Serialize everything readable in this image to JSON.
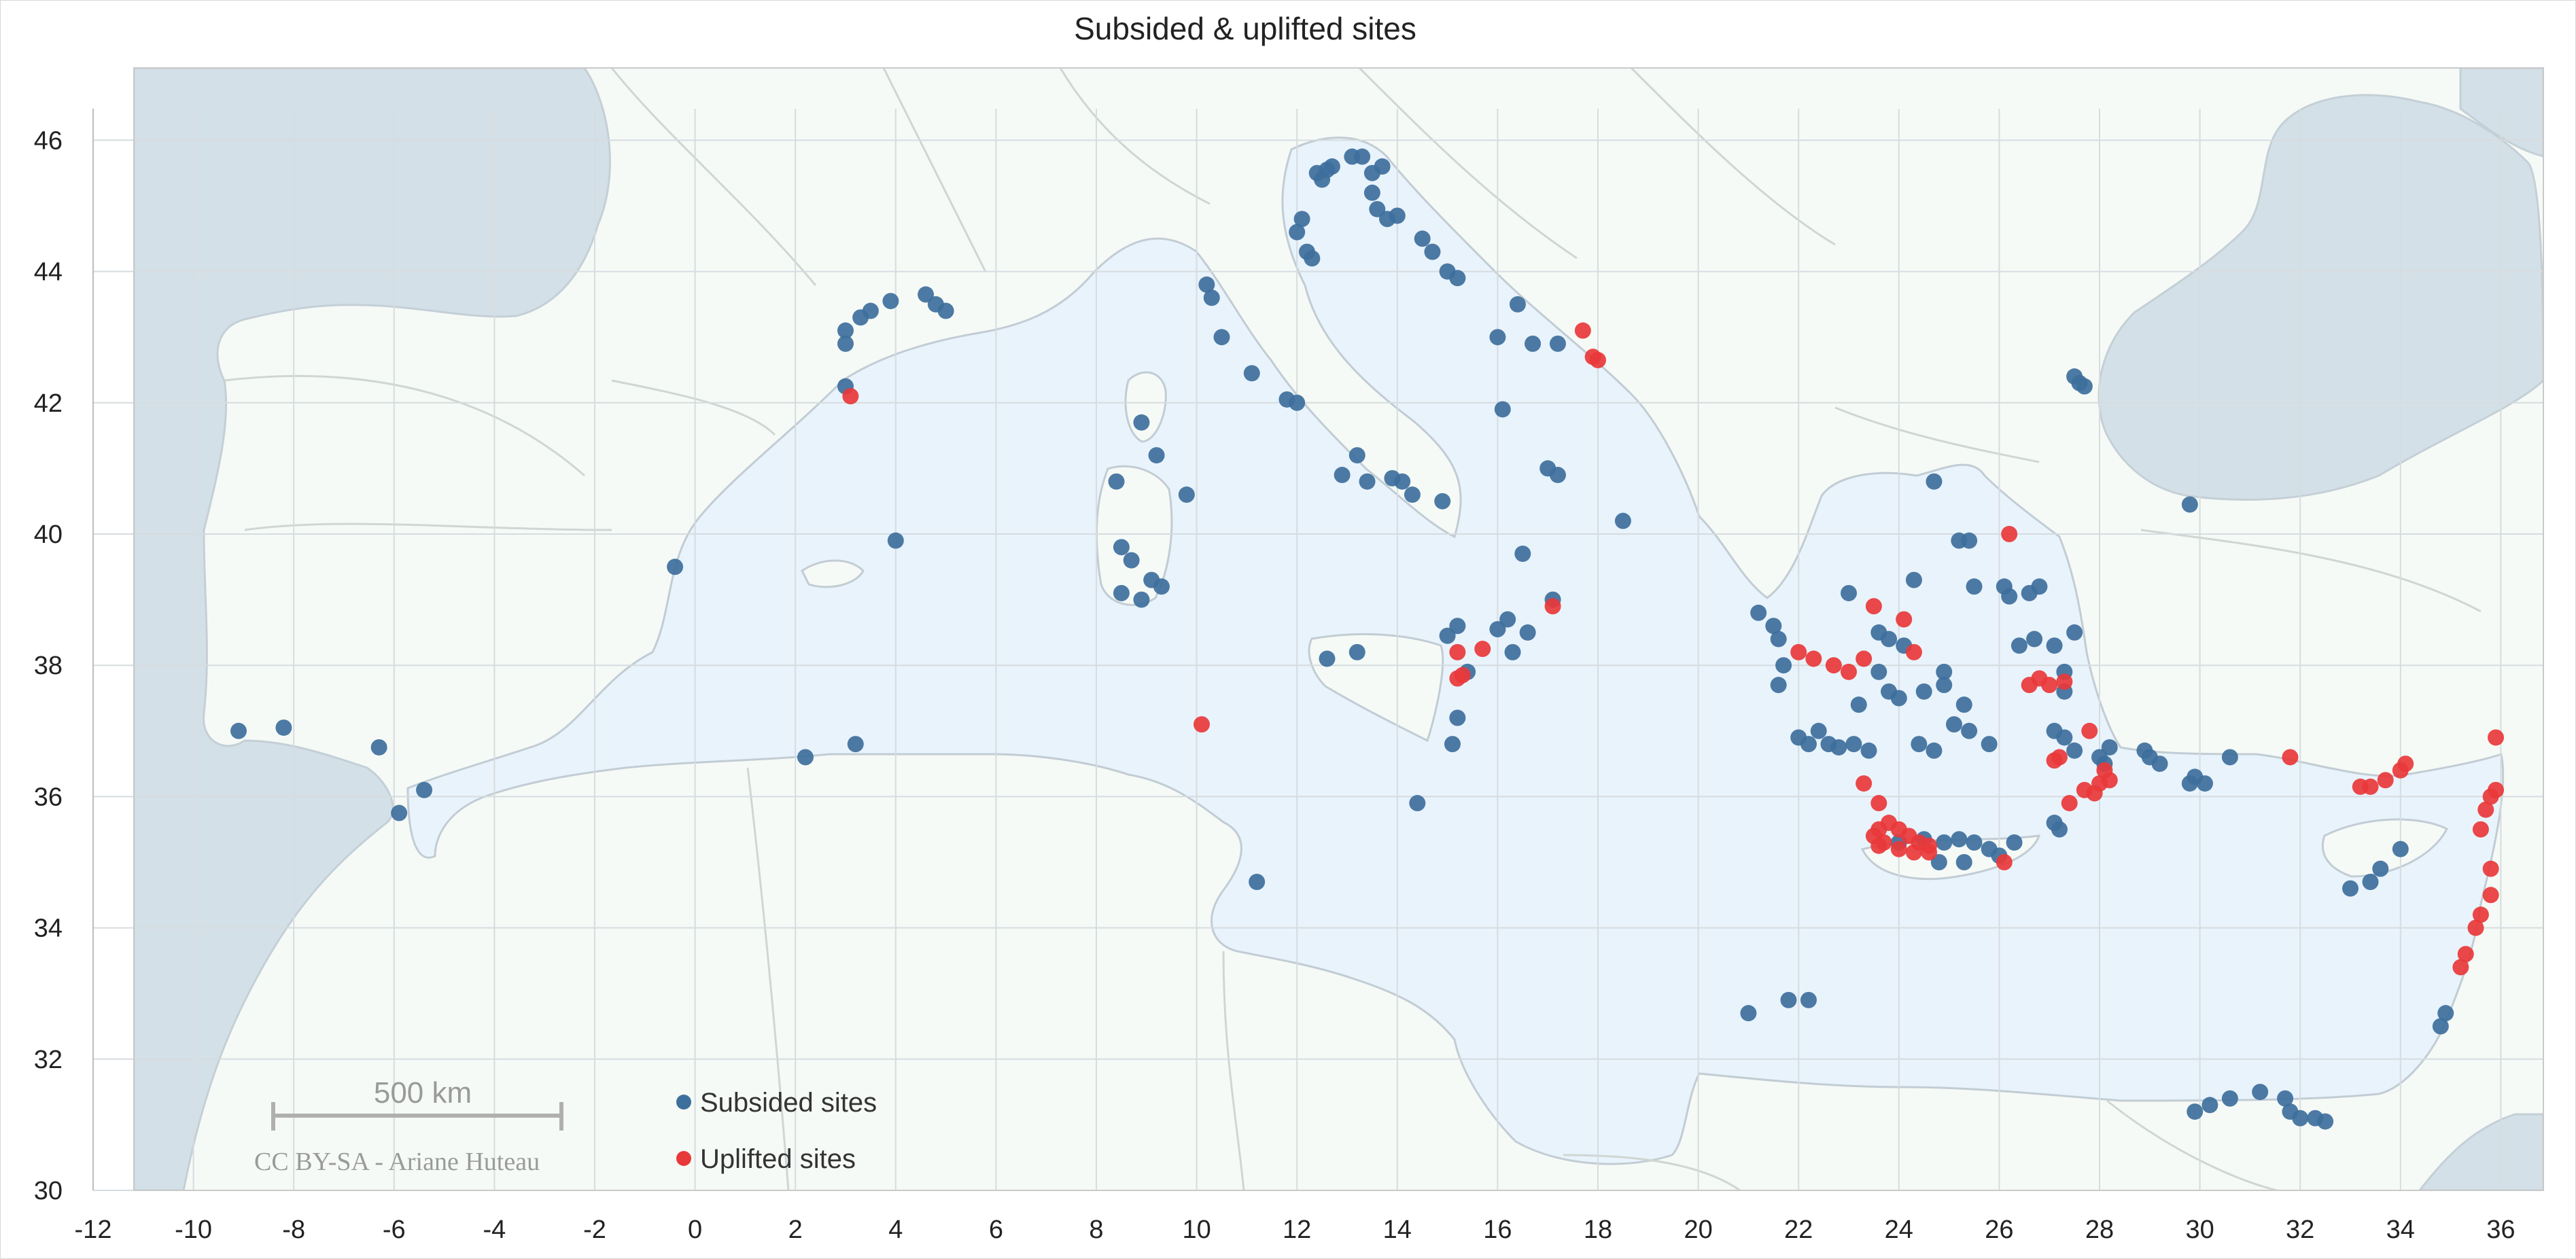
{
  "chart_data": {
    "type": "scatter",
    "title": "Subsided & uplifted sites",
    "xlim": [
      -12,
      37
    ],
    "ylim": [
      30,
      46.7
    ],
    "x_ticks": [
      -12,
      -10,
      -8,
      -6,
      -4,
      -2,
      0,
      2,
      4,
      6,
      8,
      10,
      12,
      14,
      16,
      18,
      20,
      22,
      24,
      26,
      28,
      30,
      32,
      34,
      36
    ],
    "y_ticks": [
      30,
      32,
      34,
      36,
      38,
      40,
      42,
      44,
      46
    ],
    "grid": true,
    "legend_position": "bottom-left",
    "map_scale_label": "500 km",
    "map_credit": "CC BY-SA - Ariane Huteau",
    "colors": {
      "sea": "#e9f3fb",
      "land": "#f6faf6",
      "ocean": "#d4e0e8",
      "subsided": "#3d6f9c",
      "uplifted": "#e8383a"
    },
    "series": [
      {
        "name": "Subsided sites",
        "color": "#3d6f9c",
        "points": [
          [
            -9.1,
            37.0
          ],
          [
            -8.2,
            37.05
          ],
          [
            -6.3,
            36.75
          ],
          [
            -5.9,
            35.75
          ],
          [
            -5.4,
            36.1
          ],
          [
            -0.4,
            39.5
          ],
          [
            2.2,
            36.6
          ],
          [
            3.2,
            36.8
          ],
          [
            4.0,
            39.9
          ],
          [
            3.0,
            42.25
          ],
          [
            3.0,
            42.9
          ],
          [
            3.0,
            43.1
          ],
          [
            3.3,
            43.3
          ],
          [
            3.5,
            43.4
          ],
          [
            3.9,
            43.55
          ],
          [
            4.6,
            43.65
          ],
          [
            4.8,
            43.5
          ],
          [
            5.0,
            43.4
          ],
          [
            8.4,
            40.8
          ],
          [
            8.5,
            39.8
          ],
          [
            8.5,
            39.1
          ],
          [
            8.7,
            39.6
          ],
          [
            8.9,
            39.0
          ],
          [
            9.1,
            39.3
          ],
          [
            9.3,
            39.2
          ],
          [
            9.2,
            41.2
          ],
          [
            8.9,
            41.7
          ],
          [
            9.8,
            40.6
          ],
          [
            10.2,
            43.8
          ],
          [
            10.3,
            43.6
          ],
          [
            10.5,
            43.0
          ],
          [
            11.1,
            42.45
          ],
          [
            11.8,
            42.05
          ],
          [
            12.0,
            42.0
          ],
          [
            11.2,
            34.7
          ],
          [
            12.0,
            44.6
          ],
          [
            12.1,
            44.8
          ],
          [
            12.2,
            44.3
          ],
          [
            12.3,
            44.2
          ],
          [
            12.4,
            45.5
          ],
          [
            12.5,
            45.4
          ],
          [
            12.6,
            45.55
          ],
          [
            12.7,
            45.6
          ],
          [
            13.1,
            45.75
          ],
          [
            13.3,
            45.75
          ],
          [
            13.5,
            45.5
          ],
          [
            13.7,
            45.6
          ],
          [
            13.5,
            45.2
          ],
          [
            13.6,
            44.95
          ],
          [
            13.8,
            44.8
          ],
          [
            14.0,
            44.85
          ],
          [
            14.5,
            44.5
          ],
          [
            14.7,
            44.3
          ],
          [
            15.0,
            44.0
          ],
          [
            15.2,
            43.9
          ],
          [
            16.0,
            43.0
          ],
          [
            16.4,
            43.5
          ],
          [
            16.7,
            42.9
          ],
          [
            17.2,
            42.9
          ],
          [
            16.1,
            41.9
          ],
          [
            17.0,
            41.0
          ],
          [
            17.2,
            40.9
          ],
          [
            18.5,
            40.2
          ],
          [
            13.2,
            41.2
          ],
          [
            12.9,
            40.9
          ],
          [
            13.4,
            40.8
          ],
          [
            13.9,
            40.85
          ],
          [
            14.1,
            40.8
          ],
          [
            14.3,
            40.6
          ],
          [
            14.9,
            40.5
          ],
          [
            15.0,
            38.45
          ],
          [
            15.2,
            38.6
          ],
          [
            15.4,
            37.9
          ],
          [
            15.2,
            37.2
          ],
          [
            15.1,
            36.8
          ],
          [
            16.0,
            38.55
          ],
          [
            16.2,
            38.7
          ],
          [
            16.6,
            38.5
          ],
          [
            16.5,
            39.7
          ],
          [
            17.1,
            39.0
          ],
          [
            16.3,
            38.2
          ],
          [
            14.4,
            35.9
          ],
          [
            12.6,
            38.1
          ],
          [
            13.2,
            38.2
          ],
          [
            21.0,
            32.7
          ],
          [
            21.8,
            32.9
          ],
          [
            22.2,
            32.9
          ],
          [
            21.2,
            38.8
          ],
          [
            21.5,
            38.6
          ],
          [
            21.6,
            38.4
          ],
          [
            21.7,
            38.0
          ],
          [
            21.6,
            37.7
          ],
          [
            22.0,
            36.9
          ],
          [
            22.2,
            36.8
          ],
          [
            22.4,
            37.0
          ],
          [
            22.6,
            36.8
          ],
          [
            22.8,
            36.75
          ],
          [
            23.1,
            36.8
          ],
          [
            23.4,
            36.7
          ],
          [
            23.2,
            37.4
          ],
          [
            23.6,
            37.9
          ],
          [
            23.8,
            37.6
          ],
          [
            24.0,
            37.5
          ],
          [
            23.6,
            38.5
          ],
          [
            23.8,
            38.4
          ],
          [
            24.1,
            38.3
          ],
          [
            23.0,
            39.1
          ],
          [
            24.3,
            39.3
          ],
          [
            24.7,
            40.8
          ],
          [
            25.2,
            39.9
          ],
          [
            25.4,
            39.9
          ],
          [
            25.5,
            39.2
          ],
          [
            24.5,
            37.6
          ],
          [
            24.9,
            37.9
          ],
          [
            25.3,
            37.4
          ],
          [
            25.1,
            37.1
          ],
          [
            25.4,
            37.0
          ],
          [
            25.8,
            36.8
          ],
          [
            24.7,
            36.7
          ],
          [
            24.4,
            36.8
          ],
          [
            24.9,
            37.7
          ],
          [
            24.0,
            35.3
          ],
          [
            24.5,
            35.35
          ],
          [
            24.9,
            35.3
          ],
          [
            25.2,
            35.35
          ],
          [
            25.5,
            35.3
          ],
          [
            25.8,
            35.2
          ],
          [
            26.0,
            35.1
          ],
          [
            26.3,
            35.3
          ],
          [
            24.8,
            35.0
          ],
          [
            25.3,
            35.0
          ],
          [
            26.1,
            39.2
          ],
          [
            26.2,
            39.05
          ],
          [
            26.6,
            39.1
          ],
          [
            26.8,
            39.2
          ],
          [
            26.4,
            38.3
          ],
          [
            26.7,
            38.4
          ],
          [
            27.1,
            38.3
          ],
          [
            27.5,
            38.5
          ],
          [
            27.3,
            37.9
          ],
          [
            27.3,
            37.6
          ],
          [
            27.1,
            37.0
          ],
          [
            27.3,
            36.9
          ],
          [
            27.5,
            36.7
          ],
          [
            28.0,
            36.6
          ],
          [
            28.1,
            36.5
          ],
          [
            28.2,
            36.75
          ],
          [
            28.9,
            36.7
          ],
          [
            29.0,
            36.6
          ],
          [
            29.2,
            36.5
          ],
          [
            29.8,
            36.2
          ],
          [
            29.9,
            36.3
          ],
          [
            30.1,
            36.2
          ],
          [
            30.6,
            36.6
          ],
          [
            29.8,
            40.45
          ],
          [
            27.5,
            42.4
          ],
          [
            27.6,
            42.3
          ],
          [
            27.7,
            42.25
          ],
          [
            27.1,
            35.6
          ],
          [
            27.2,
            35.5
          ],
          [
            29.9,
            31.2
          ],
          [
            30.2,
            31.3
          ],
          [
            30.6,
            31.4
          ],
          [
            31.2,
            31.5
          ],
          [
            31.7,
            31.4
          ],
          [
            31.8,
            31.2
          ],
          [
            32.0,
            31.1
          ],
          [
            32.3,
            31.1
          ],
          [
            32.5,
            31.05
          ],
          [
            33.0,
            34.6
          ],
          [
            33.4,
            34.7
          ],
          [
            33.6,
            34.9
          ],
          [
            34.0,
            35.2
          ],
          [
            34.8,
            32.5
          ],
          [
            34.9,
            32.7
          ]
        ]
      },
      {
        "name": "Uplifted sites",
        "color": "#e8383a",
        "points": [
          [
            3.1,
            42.1
          ],
          [
            10.1,
            37.1
          ],
          [
            17.7,
            43.1
          ],
          [
            17.9,
            42.7
          ],
          [
            18.0,
            42.65
          ],
          [
            15.2,
            38.2
          ],
          [
            15.2,
            37.8
          ],
          [
            15.3,
            37.85
          ],
          [
            15.7,
            38.25
          ],
          [
            17.1,
            38.9
          ],
          [
            22.0,
            38.2
          ],
          [
            22.3,
            38.1
          ],
          [
            22.7,
            38.0
          ],
          [
            23.0,
            37.9
          ],
          [
            23.3,
            38.1
          ],
          [
            23.5,
            38.9
          ],
          [
            24.1,
            38.7
          ],
          [
            24.3,
            38.2
          ],
          [
            23.3,
            36.2
          ],
          [
            23.6,
            35.9
          ],
          [
            23.5,
            35.4
          ],
          [
            23.6,
            35.5
          ],
          [
            23.8,
            35.6
          ],
          [
            24.0,
            35.5
          ],
          [
            24.2,
            35.4
          ],
          [
            24.4,
            35.3
          ],
          [
            23.7,
            35.3
          ],
          [
            24.0,
            35.2
          ],
          [
            24.3,
            35.15
          ],
          [
            24.6,
            35.25
          ],
          [
            24.6,
            35.15
          ],
          [
            23.6,
            35.25
          ],
          [
            26.2,
            40.0
          ],
          [
            26.1,
            35.0
          ],
          [
            26.6,
            37.7
          ],
          [
            26.8,
            37.8
          ],
          [
            27.0,
            37.7
          ],
          [
            27.3,
            37.75
          ],
          [
            27.8,
            37.0
          ],
          [
            27.1,
            36.55
          ],
          [
            27.2,
            36.6
          ],
          [
            27.4,
            35.9
          ],
          [
            27.7,
            36.1
          ],
          [
            27.9,
            36.05
          ],
          [
            28.0,
            36.2
          ],
          [
            28.1,
            36.4
          ],
          [
            28.2,
            36.25
          ],
          [
            31.8,
            36.6
          ],
          [
            33.2,
            36.15
          ],
          [
            33.4,
            36.15
          ],
          [
            33.7,
            36.25
          ],
          [
            34.0,
            36.4
          ],
          [
            34.1,
            36.5
          ],
          [
            35.9,
            36.9
          ],
          [
            35.8,
            36.0
          ],
          [
            35.7,
            35.8
          ],
          [
            35.9,
            36.1
          ],
          [
            35.6,
            35.5
          ],
          [
            35.8,
            34.9
          ],
          [
            35.8,
            34.5
          ],
          [
            35.6,
            34.2
          ],
          [
            35.5,
            34.0
          ],
          [
            35.3,
            33.6
          ],
          [
            35.2,
            33.4
          ]
        ]
      }
    ]
  }
}
